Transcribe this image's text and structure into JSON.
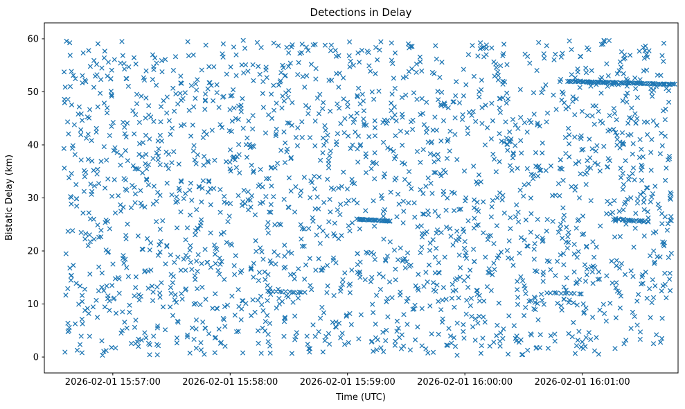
{
  "chart_data": {
    "type": "scatter",
    "title": "Detections in Delay",
    "xlabel": "Time (UTC)",
    "ylabel": "Bistatic Delay (km)",
    "marker": "x",
    "marker_color": "#1f77b4",
    "marker_size_px": 6,
    "grid": false,
    "legend": "none",
    "x_axis": {
      "type": "time",
      "time_origin": "2026-02-01 15:56:30",
      "domain_seconds": [
        -5,
        319
      ],
      "ticks": [
        {
          "t": 30,
          "label": "2026-02-01 15:57:00"
        },
        {
          "t": 90,
          "label": "2026-02-01 15:58:00"
        },
        {
          "t": 150,
          "label": "2026-02-01 15:59:00"
        },
        {
          "t": 210,
          "label": "2026-02-01 16:00:00"
        },
        {
          "t": 270,
          "label": "2026-02-01 16:01:00"
        }
      ]
    },
    "y_axis": {
      "domain": [
        -3,
        63
      ],
      "ticks": [
        0,
        10,
        20,
        30,
        40,
        50,
        60
      ]
    },
    "noise_points": {
      "description": "Uniformly scattered clutter detections across the full time/delay extent",
      "distribution": "uniform",
      "count": 2100,
      "t_range_seconds": [
        5,
        316
      ],
      "y_range_km": [
        0.3,
        59.7
      ],
      "seed": 42
    },
    "tracks": [
      {
        "name": "track-51.5km-right",
        "t_start": 263,
        "t_end": 317,
        "y_start": 52.0,
        "y_end": 51.4,
        "count": 80,
        "jitter": 0.12
      },
      {
        "name": "track-26km-1559",
        "t_start": 155,
        "t_end": 172,
        "y_start": 26.0,
        "y_end": 25.6,
        "count": 30,
        "jitter": 0.1
      },
      {
        "name": "track-26km-right",
        "t_start": 286,
        "t_end": 304,
        "y_start": 26.0,
        "y_end": 25.5,
        "count": 24,
        "jitter": 0.15
      },
      {
        "name": "track-12km-mid",
        "t_start": 109,
        "t_end": 128,
        "y_start": 12.4,
        "y_end": 12.2,
        "count": 13,
        "jitter": 0.08
      },
      {
        "name": "track-12km-right",
        "t_start": 252,
        "t_end": 270,
        "y_start": 12.1,
        "y_end": 11.9,
        "count": 11,
        "jitter": 0.08
      }
    ]
  }
}
